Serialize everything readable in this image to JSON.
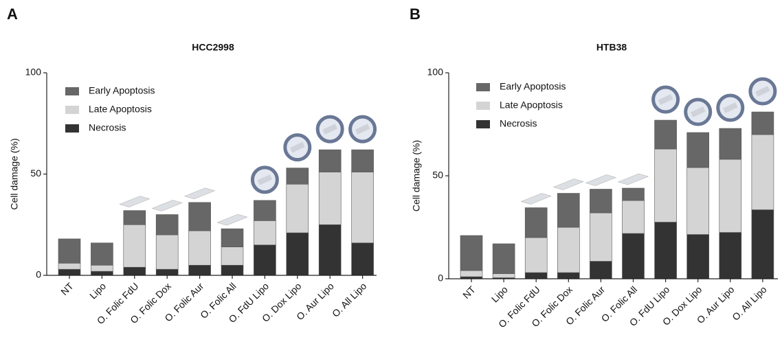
{
  "chart_data": [
    {
      "type": "bar",
      "stacked": true,
      "panel_label": "A",
      "title": "HCC2998",
      "y_label": "Cell damage (%)",
      "categories": [
        "NT",
        "Lipo",
        "O. Folic FdU",
        "O. Folic Dox",
        "O. Folic Aur",
        "O. Folic All",
        "O. FdU Lipo",
        "O. Dox Lipo",
        "O. Aur Lipo",
        "O. All Lipo"
      ],
      "series": [
        {
          "name": "Necrosis",
          "color": "#333333",
          "values": [
            3,
            2,
            4,
            3,
            5,
            5,
            15,
            21,
            25,
            16
          ]
        },
        {
          "name": "Late Apoptosis",
          "color": "#d4d4d4",
          "values": [
            3,
            3,
            21,
            17,
            17,
            9,
            12,
            24,
            26,
            35
          ]
        },
        {
          "name": "Early Apoptosis",
          "color": "#676767",
          "values": [
            12,
            11,
            7,
            10,
            14,
            9,
            10,
            8,
            11,
            11
          ]
        }
      ],
      "ylim": [
        0,
        100
      ],
      "yticks": [
        0,
        50,
        100
      ],
      "grid": false,
      "legend": "top-left"
    },
    {
      "type": "bar",
      "stacked": true,
      "panel_label": "B",
      "title": "HTB38",
      "y_label": "Cell damage (%)",
      "categories": [
        "NT",
        "Lipo",
        "O. Folic FdU",
        "O. Folic Dox",
        "O. Folic Aur",
        "O. Folic All",
        "O. FdU Lipo",
        "O. Dox Lipo",
        "O. Aur Lipo",
        "O. All Lipo"
      ],
      "series": [
        {
          "name": "Necrosis",
          "color": "#333333",
          "values": [
            1,
            0.5,
            3,
            3,
            8.5,
            22,
            27.5,
            21.5,
            22.5,
            33.5
          ]
        },
        {
          "name": "Late Apoptosis",
          "color": "#d4d4d4",
          "values": [
            3,
            2,
            17,
            22,
            23.5,
            16,
            35.5,
            32.5,
            35.5,
            36.5
          ]
        },
        {
          "name": "Early Apoptosis",
          "color": "#676767",
          "values": [
            17,
            14.5,
            14.5,
            16.5,
            11.5,
            6,
            14,
            17,
            15,
            11
          ]
        }
      ],
      "ylim": [
        0,
        100
      ],
      "yticks": [
        0,
        50,
        100
      ],
      "grid": false,
      "legend": "top-left"
    }
  ]
}
